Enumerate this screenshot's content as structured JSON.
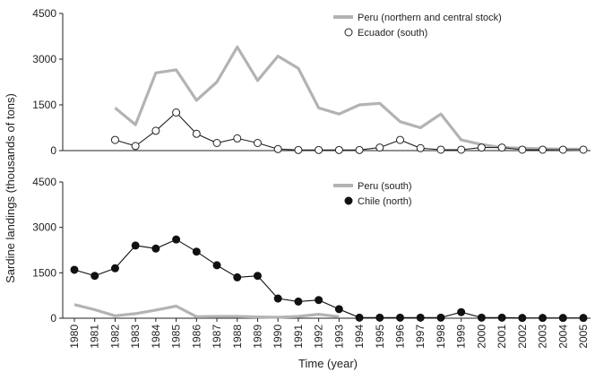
{
  "chart_data": [
    {
      "type": "line",
      "panel": "top",
      "ylim": [
        0,
        4500
      ],
      "yticks": [
        "4500",
        "3000",
        "1500",
        "0"
      ],
      "ytick_values": [
        4500,
        3000,
        1500,
        0
      ],
      "legend": "top-right",
      "series": [
        {
          "name": "Peru (northern and central stock)",
          "style": "thick-gray-line",
          "color": "#b3b3b3",
          "x": [
            1982,
            1983,
            1984,
            1985,
            1986,
            1987,
            1988,
            1989,
            1990,
            1991,
            1992,
            1993,
            1994,
            1995,
            1996,
            1997,
            1998,
            1999,
            2000,
            2001,
            2002,
            2003,
            2004,
            2005
          ],
          "values": [
            1400,
            850,
            2550,
            2650,
            1650,
            2250,
            3400,
            2300,
            3100,
            2700,
            1400,
            1200,
            1500,
            1550,
            950,
            750,
            1200,
            350,
            200,
            100,
            80,
            60,
            50,
            40
          ]
        },
        {
          "name": "Ecuador (south)",
          "style": "open-circle",
          "color": "#222222",
          "x": [
            1982,
            1983,
            1984,
            1985,
            1986,
            1987,
            1988,
            1989,
            1990,
            1991,
            1992,
            1993,
            1994,
            1995,
            1996,
            1997,
            1998,
            1999,
            2000,
            2001,
            2002,
            2003,
            2004,
            2005
          ],
          "values": [
            350,
            150,
            650,
            1250,
            550,
            250,
            400,
            250,
            50,
            20,
            20,
            20,
            20,
            100,
            350,
            80,
            30,
            30,
            100,
            100,
            30,
            30,
            30,
            30
          ]
        }
      ]
    },
    {
      "type": "line",
      "panel": "bottom",
      "ylim": [
        0,
        4500
      ],
      "yticks": [
        "4500",
        "3000",
        "1500",
        "0"
      ],
      "ytick_values": [
        4500,
        3000,
        1500,
        0
      ],
      "legend": "top-right",
      "series": [
        {
          "name": "Peru (south)",
          "style": "thick-gray-line",
          "color": "#b3b3b3",
          "x": [
            1980,
            1981,
            1982,
            1983,
            1984,
            1985,
            1986,
            1987,
            1988,
            1989,
            1990,
            1991,
            1992,
            1993
          ],
          "values": [
            450,
            280,
            80,
            150,
            270,
            400,
            50,
            60,
            60,
            40,
            30,
            60,
            130,
            50
          ]
        },
        {
          "name": "Chile (north)",
          "style": "filled-circle",
          "color": "#111111",
          "x": [
            1980,
            1981,
            1982,
            1983,
            1984,
            1985,
            1986,
            1987,
            1988,
            1989,
            1990,
            1991,
            1992,
            1993,
            1994,
            1995,
            1996,
            1997,
            1998,
            1999,
            2000,
            2001,
            2002,
            2003,
            2004,
            2005
          ],
          "values": [
            1600,
            1400,
            1650,
            2400,
            2300,
            2600,
            2200,
            1750,
            1350,
            1400,
            650,
            550,
            600,
            300,
            20,
            20,
            20,
            20,
            20,
            200,
            20,
            20,
            10,
            10,
            10,
            10
          ]
        }
      ]
    }
  ],
  "axes": {
    "ylabel": "Sardine landings (thousands of tons)",
    "xlabel": "Time (year)",
    "xticks": [
      "1980",
      "1981",
      "1982",
      "1983",
      "1984",
      "1985",
      "1986",
      "1987",
      "1988",
      "1989",
      "1990",
      "1991",
      "1992",
      "1993",
      "1994",
      "1995",
      "1996",
      "1997",
      "1998",
      "1999",
      "2000",
      "2001",
      "2002",
      "2003",
      "2004",
      "2005"
    ],
    "xmin": 1980,
    "xmax": 2005
  }
}
